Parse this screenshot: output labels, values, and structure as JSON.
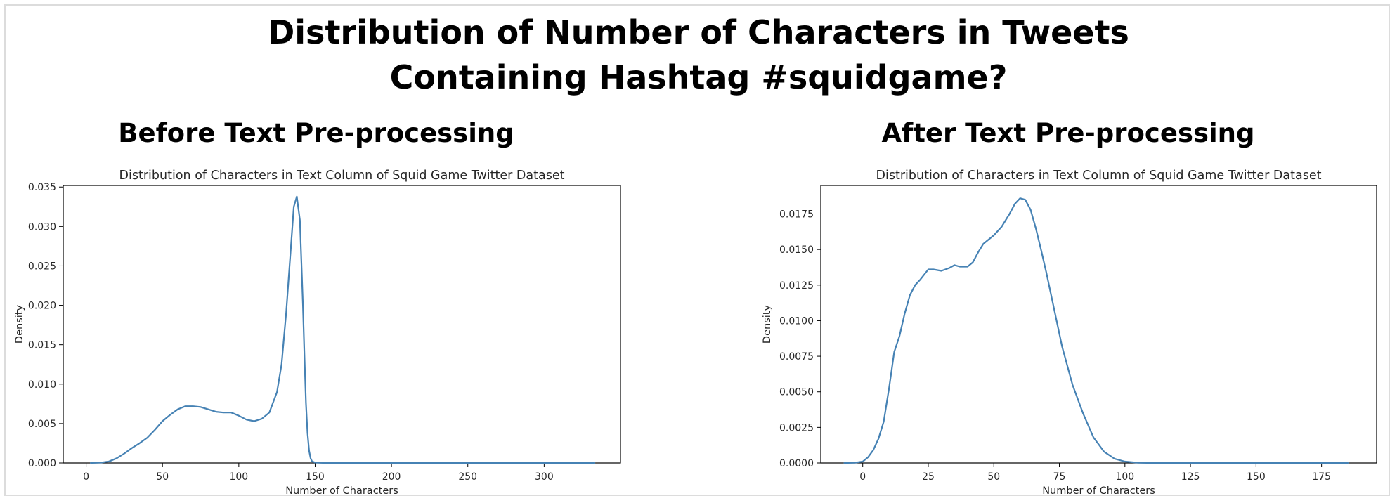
{
  "figure": {
    "title_line1": "Distribution of Number of Characters in Tweets",
    "title_line2": "Containing Hashtag #squidgame?",
    "left_heading": "Before Text Pre-processing",
    "right_heading": "After Text Pre-processing"
  },
  "colors": {
    "line": "#4682b4",
    "axis": "#000000",
    "text": "#262626"
  },
  "chart_data": [
    {
      "type": "line",
      "title": "Distribution of Characters in Text Column of Squid Game Twitter Dataset",
      "xlabel": "Number of Characters",
      "ylabel": "Density",
      "xlim": [
        -15,
        350
      ],
      "ylim": [
        0,
        0.0352
      ],
      "xticks": [
        0,
        50,
        100,
        150,
        200,
        250,
        300
      ],
      "yticks": [
        0.0,
        0.005,
        0.01,
        0.015,
        0.02,
        0.025,
        0.03,
        0.035
      ],
      "ytick_labels": [
        "0.000",
        "0.005",
        "0.010",
        "0.015",
        "0.020",
        "0.025",
        "0.030",
        "0.035"
      ],
      "grid": false,
      "series": [
        {
          "x": [
            3,
            10,
            15,
            20,
            25,
            30,
            35,
            40,
            45,
            50,
            55,
            60,
            65,
            70,
            75,
            80,
            85,
            90,
            95,
            100,
            105,
            110,
            115,
            120,
            125,
            128,
            131,
            134,
            136,
            138,
            140,
            142,
            143,
            144,
            145,
            146,
            147,
            148,
            150,
            155,
            170,
            200,
            250,
            300,
            333
          ],
          "y": [
            0.0,
            5e-05,
            0.0002,
            0.0006,
            0.0012,
            0.0019,
            0.0025,
            0.0032,
            0.0042,
            0.0053,
            0.0061,
            0.0068,
            0.0072,
            0.0072,
            0.0071,
            0.0068,
            0.0065,
            0.0064,
            0.0064,
            0.006,
            0.0055,
            0.0053,
            0.0056,
            0.0064,
            0.009,
            0.0125,
            0.019,
            0.027,
            0.0325,
            0.0338,
            0.0308,
            0.02,
            0.0135,
            0.0076,
            0.0038,
            0.0016,
            0.0006,
            0.0002,
            5e-05,
            1e-05,
            0.0,
            0.0,
            0.0,
            0.0,
            0.0
          ]
        }
      ]
    },
    {
      "type": "line",
      "title": "Distribution of Characters in Text Column of Squid Game Twitter Dataset",
      "xlabel": "Number of Characters",
      "ylabel": "Density",
      "xlim": [
        -16,
        196
      ],
      "ylim": [
        0,
        0.0195
      ],
      "xticks": [
        0,
        25,
        50,
        75,
        100,
        125,
        150,
        175
      ],
      "yticks": [
        0.0,
        0.0025,
        0.005,
        0.0075,
        0.01,
        0.0125,
        0.015,
        0.0175
      ],
      "ytick_labels": [
        "0.0000",
        "0.0025",
        "0.0050",
        "0.0075",
        "0.0100",
        "0.0125",
        "0.0150",
        "0.0175"
      ],
      "grid": false,
      "series": [
        {
          "x": [
            -7,
            -3,
            0,
            2,
            4,
            6,
            8,
            10,
            12,
            14,
            16,
            18,
            20,
            22,
            25,
            27,
            30,
            33,
            35,
            37,
            40,
            42,
            44,
            46,
            48,
            50,
            53,
            56,
            58,
            60,
            62,
            64,
            66,
            68,
            70,
            73,
            76,
            80,
            84,
            88,
            92,
            96,
            100,
            105,
            110,
            120,
            140,
            160,
            185
          ],
          "y": [
            0.0,
            2e-05,
            0.0001,
            0.0004,
            0.0009,
            0.0017,
            0.0029,
            0.0052,
            0.0078,
            0.0089,
            0.0105,
            0.0118,
            0.0125,
            0.0129,
            0.0136,
            0.0136,
            0.0135,
            0.0137,
            0.0139,
            0.0138,
            0.0138,
            0.0141,
            0.0148,
            0.0154,
            0.0157,
            0.016,
            0.0166,
            0.0175,
            0.0182,
            0.0186,
            0.0185,
            0.0178,
            0.0165,
            0.015,
            0.0134,
            0.0108,
            0.0082,
            0.0055,
            0.0035,
            0.0018,
            0.0008,
            0.0003,
            0.0001,
            2e-05,
            0.0,
            0.0,
            0.0,
            0.0,
            0.0
          ]
        }
      ]
    }
  ]
}
